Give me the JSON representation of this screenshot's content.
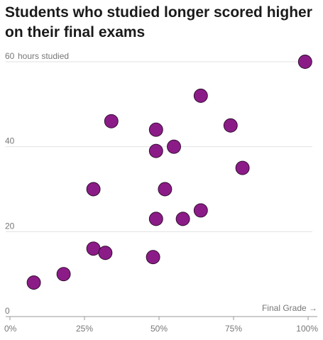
{
  "chart_data": {
    "type": "scatter",
    "title": "Students who studied longer scored higher on their final exams",
    "xlabel": "Final Grade →",
    "ylabel": "hours studied",
    "xlim": [
      0,
      100
    ],
    "ylim": [
      0,
      60
    ],
    "x_ticks": [
      0,
      25,
      50,
      75,
      100
    ],
    "x_tick_labels": [
      "0%",
      "25%",
      "50%",
      "75%",
      "100%"
    ],
    "y_ticks": [
      0,
      20,
      40,
      60
    ],
    "y_tick_labels": [
      "0",
      "20",
      "40",
      "60"
    ],
    "grid": "horizontal",
    "marker_color": "#8b1c87",
    "points": [
      {
        "x": 8,
        "y": 8
      },
      {
        "x": 18,
        "y": 10
      },
      {
        "x": 28,
        "y": 16
      },
      {
        "x": 32,
        "y": 15
      },
      {
        "x": 28,
        "y": 30
      },
      {
        "x": 34,
        "y": 46
      },
      {
        "x": 48,
        "y": 14
      },
      {
        "x": 49,
        "y": 23
      },
      {
        "x": 49,
        "y": 39
      },
      {
        "x": 49,
        "y": 44
      },
      {
        "x": 52,
        "y": 30
      },
      {
        "x": 55,
        "y": 40
      },
      {
        "x": 58,
        "y": 23
      },
      {
        "x": 64,
        "y": 25
      },
      {
        "x": 64,
        "y": 52
      },
      {
        "x": 74,
        "y": 45
      },
      {
        "x": 78,
        "y": 35
      },
      {
        "x": 99,
        "y": 60
      }
    ]
  }
}
